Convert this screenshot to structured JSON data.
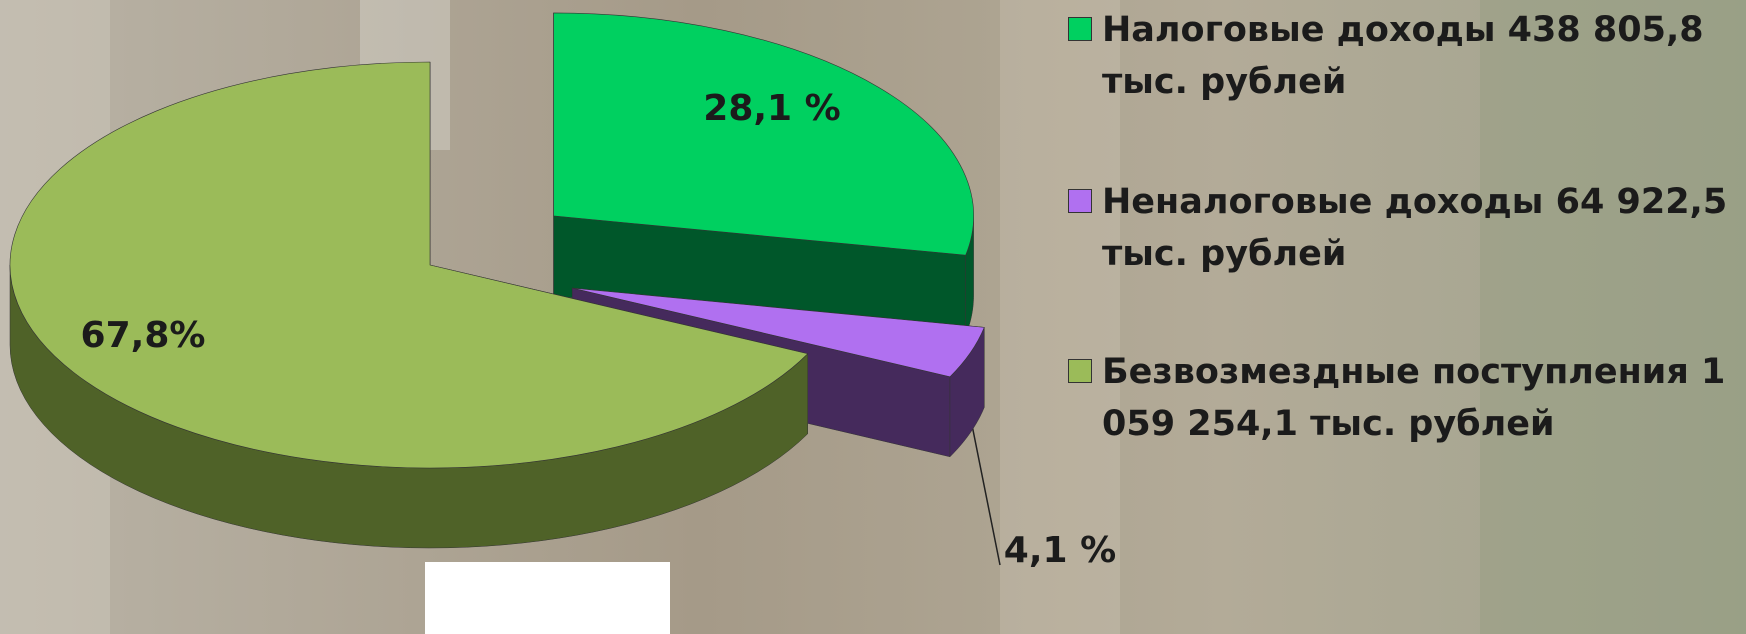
{
  "chart_data": {
    "type": "pie",
    "categories": [
      "Налоговые доходы  438 805,8 тыс. рублей",
      "Неналоговые доходы 64 922,5 тыс. рублей",
      "Безвозмездные поступления  1 059 254,1 тыс. рублей"
    ],
    "values": [
      28.1,
      4.1,
      67.8
    ],
    "value_labels": [
      "28,1 %",
      "4,1 %",
      "67,8%"
    ],
    "colors": [
      "#00d060",
      "#b070f0",
      "#9bbb59"
    ],
    "legend": "right"
  }
}
